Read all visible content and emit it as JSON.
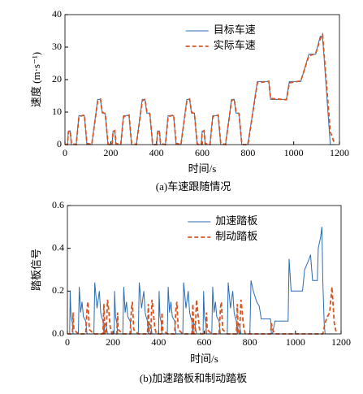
{
  "chart_data": [
    {
      "type": "line",
      "xlabel": "时间/s",
      "ylabel": "速度 (m·s⁻¹)",
      "caption": "(a)车速跟随情况",
      "xlim": [
        0,
        1200
      ],
      "xticks": [
        0,
        200,
        400,
        600,
        800,
        1000,
        1200
      ],
      "ylim": [
        0,
        40
      ],
      "yticks": [
        0,
        10,
        20,
        30,
        40
      ],
      "legend": "upper center",
      "x": [
        0,
        11,
        15,
        23,
        28,
        49,
        61,
        85,
        96,
        117,
        143,
        155,
        163,
        176,
        188,
        195,
        206,
        210,
        218,
        223,
        244,
        256,
        280,
        291,
        312,
        338,
        350,
        358,
        371,
        383,
        390,
        401,
        405,
        413,
        418,
        439,
        451,
        475,
        486,
        507,
        533,
        545,
        553,
        566,
        578,
        585,
        596,
        600,
        608,
        613,
        634,
        646,
        670,
        681,
        702,
        728,
        740,
        748,
        761,
        773,
        780,
        800,
        841,
        891,
        899,
        968,
        981,
        1031,
        1066,
        1096,
        1116,
        1126,
        1160,
        1180
      ],
      "series": [
        {
          "name": "目标车速",
          "color": "#2b6cb3",
          "dashed": false,
          "values": [
            0,
            0,
            4.2,
            4.2,
            0,
            0,
            8.9,
            8.9,
            0,
            0,
            13.9,
            13.9,
            9.7,
            9.7,
            0,
            0,
            0,
            4.2,
            4.2,
            0,
            0,
            8.9,
            8.9,
            0,
            0,
            13.9,
            13.9,
            9.7,
            9.7,
            0,
            0,
            0,
            4.2,
            4.2,
            0,
            0,
            8.9,
            8.9,
            0,
            0,
            13.9,
            13.9,
            9.7,
            9.7,
            0,
            0,
            0,
            4.2,
            4.2,
            0,
            0,
            8.9,
            8.9,
            0,
            0,
            13.9,
            13.9,
            9.7,
            9.7,
            0,
            0,
            0,
            19.4,
            19.4,
            13.9,
            13.9,
            19.4,
            19.4,
            27.8,
            27.8,
            33.3,
            33.3,
            0,
            0
          ]
        },
        {
          "name": "实际车速",
          "color": "#d9541e",
          "dashed": true,
          "values": [
            0,
            0,
            3.9,
            4.3,
            0.3,
            0,
            8.6,
            9.1,
            0.4,
            0,
            13.5,
            14,
            10,
            9.5,
            0.3,
            0,
            0,
            3.9,
            4.3,
            0.3,
            0,
            8.6,
            9.1,
            0.4,
            0,
            13.5,
            14,
            10,
            9.5,
            0.3,
            0,
            0,
            3.9,
            4.3,
            0.3,
            0,
            8.6,
            9.1,
            0.4,
            0,
            13.5,
            14,
            10,
            9.5,
            0.3,
            0,
            0,
            3.9,
            4.3,
            0.3,
            0,
            8.6,
            9.1,
            0.4,
            0,
            13.5,
            14,
            10,
            9.5,
            0.3,
            0,
            0,
            19,
            19.5,
            14.2,
            13.8,
            19,
            19.6,
            27.3,
            28,
            32.5,
            33.8,
            4,
            0
          ]
        }
      ]
    },
    {
      "type": "line",
      "xlabel": "时间/s",
      "ylabel": "踏板信号",
      "caption": "(b)加速踏板和制动踏板",
      "xlim": [
        0,
        1200
      ],
      "xticks": [
        0,
        200,
        400,
        600,
        800,
        1000,
        1200
      ],
      "ylim": [
        0,
        0.6
      ],
      "yticks": [
        {
          "value": 0,
          "label": "0.0"
        },
        0.2,
        0.4,
        0.6
      ],
      "legend": "upper center",
      "x": [
        0,
        10,
        12,
        16,
        22,
        25,
        28,
        48,
        52,
        58,
        64,
        70,
        80,
        86,
        90,
        96,
        116,
        120,
        130,
        140,
        146,
        150,
        156,
        160,
        164,
        170,
        176,
        180,
        188,
        195,
        205,
        207,
        211,
        217,
        220,
        223,
        243,
        247,
        253,
        259,
        265,
        275,
        281,
        285,
        291,
        311,
        315,
        325,
        335,
        341,
        345,
        351,
        355,
        359,
        365,
        371,
        375,
        383,
        390,
        400,
        402,
        406,
        412,
        415,
        418,
        438,
        442,
        448,
        454,
        460,
        470,
        476,
        480,
        486,
        506,
        510,
        520,
        530,
        536,
        540,
        546,
        550,
        554,
        560,
        566,
        570,
        578,
        585,
        595,
        597,
        601,
        607,
        610,
        613,
        633,
        637,
        643,
        649,
        655,
        665,
        671,
        675,
        681,
        701,
        705,
        715,
        725,
        731,
        735,
        741,
        745,
        749,
        755,
        761,
        765,
        773,
        780,
        800,
        805,
        815,
        830,
        841,
        850,
        880,
        891,
        895,
        899,
        910,
        960,
        968,
        972,
        981,
        990,
        1020,
        1031,
        1040,
        1060,
        1066,
        1075,
        1090,
        1096,
        1100,
        1110,
        1116,
        1120,
        1126,
        1130,
        1140,
        1150,
        1160,
        1170,
        1180
      ],
      "series": [
        {
          "name": "加速踏板",
          "color": "#2b6cb3",
          "dashed": false,
          "values": [
            0,
            0,
            0.2,
            0.08,
            0.05,
            0,
            0,
            0,
            0.22,
            0.1,
            0.15,
            0.08,
            0.06,
            0,
            0,
            0,
            0,
            0.24,
            0.12,
            0.2,
            0.1,
            0.08,
            0.06,
            0,
            0.05,
            0.04,
            0,
            0,
            0,
            0,
            0,
            0.2,
            0.08,
            0.05,
            0,
            0,
            0,
            0.22,
            0.1,
            0.15,
            0.08,
            0.06,
            0,
            0,
            0,
            0,
            0.24,
            0.12,
            0.2,
            0.1,
            0.08,
            0.06,
            0,
            0.05,
            0.04,
            0,
            0,
            0,
            0,
            0,
            0.2,
            0.08,
            0.05,
            0,
            0,
            0,
            0.22,
            0.1,
            0.15,
            0.08,
            0.06,
            0,
            0,
            0,
            0,
            0.24,
            0.12,
            0.2,
            0.1,
            0.08,
            0.06,
            0,
            0.05,
            0.04,
            0,
            0,
            0,
            0,
            0,
            0.2,
            0.08,
            0.05,
            0,
            0,
            0,
            0.22,
            0.1,
            0.15,
            0.08,
            0.06,
            0,
            0,
            0,
            0,
            0.24,
            0.12,
            0.2,
            0.1,
            0.08,
            0.06,
            0,
            0.05,
            0.04,
            0,
            0,
            0,
            0,
            0,
            0.25,
            0.2,
            0.15,
            0.13,
            0.07,
            0.07,
            0.07,
            0,
            0,
            0.06,
            0.06,
            0.06,
            0.35,
            0.2,
            0.2,
            0.2,
            0.2,
            0.3,
            0.35,
            0.37,
            0.25,
            0.25,
            0.25,
            0.4,
            0.45,
            0.5,
            0.25,
            0.05,
            0,
            0,
            0,
            0,
            0,
            0
          ]
        },
        {
          "name": "制动踏板",
          "color": "#d9541e",
          "dashed": true,
          "values": [
            0,
            0,
            0,
            0,
            0,
            0.1,
            0.02,
            0,
            0,
            0,
            0,
            0,
            0,
            0.12,
            0.15,
            0.02,
            0,
            0,
            0,
            0,
            0,
            0,
            0,
            0.14,
            0,
            0,
            0.16,
            0.12,
            0.03,
            0,
            0,
            0,
            0,
            0,
            0.1,
            0.02,
            0,
            0,
            0,
            0,
            0,
            0,
            0.12,
            0.15,
            0.02,
            0,
            0,
            0,
            0,
            0,
            0,
            0,
            0.14,
            0,
            0,
            0.16,
            0.12,
            0.03,
            0,
            0,
            0,
            0,
            0,
            0.1,
            0.02,
            0,
            0,
            0,
            0,
            0,
            0,
            0.12,
            0.15,
            0.02,
            0,
            0,
            0,
            0,
            0,
            0,
            0,
            0.14,
            0,
            0,
            0.16,
            0.12,
            0.03,
            0,
            0,
            0,
            0,
            0,
            0.1,
            0.02,
            0,
            0,
            0,
            0,
            0,
            0,
            0.12,
            0.15,
            0.02,
            0,
            0,
            0,
            0,
            0,
            0,
            0,
            0.14,
            0,
            0,
            0.16,
            0.12,
            0.03,
            0,
            0,
            0,
            0,
            0,
            0,
            0,
            0,
            0,
            0.05,
            0.02,
            0,
            0,
            0,
            0,
            0,
            0,
            0,
            0,
            0,
            0,
            0,
            0,
            0,
            0,
            0,
            0,
            0,
            0,
            0.03,
            0.05,
            0.08,
            0.1,
            0.22,
            0.05,
            0
          ]
        }
      ]
    }
  ]
}
